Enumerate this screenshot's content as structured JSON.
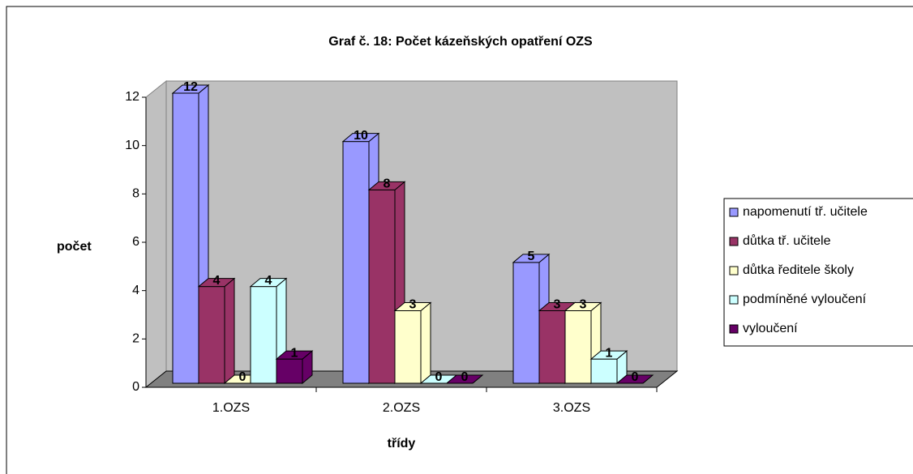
{
  "chart_data": {
    "type": "bar3d",
    "title": "Graf č. 18: Počet kázeňských opatření OZS",
    "ylabel": "počet",
    "xlabel": "třídy",
    "categories": [
      "1.OZS",
      "2.OZS",
      "3.OZS"
    ],
    "series": [
      {
        "name": "napomenutí tř. učitele",
        "color": "#9999ff",
        "values": [
          12,
          10,
          5
        ]
      },
      {
        "name": "důtka tř. učitele",
        "color": "#993366",
        "values": [
          4,
          8,
          3
        ]
      },
      {
        "name": "důtka ředitele školy",
        "color": "#ffffcc",
        "values": [
          0,
          3,
          3
        ]
      },
      {
        "name": "podmíněné vyloučení",
        "color": "#ccffff",
        "values": [
          4,
          0,
          1
        ]
      },
      {
        "name": "vyloučení",
        "color": "#660066",
        "values": [
          1,
          0,
          0
        ]
      }
    ],
    "ylim": [
      0,
      12
    ],
    "yticks": [
      0,
      2,
      4,
      6,
      8,
      10,
      12
    ],
    "legend": "right"
  }
}
